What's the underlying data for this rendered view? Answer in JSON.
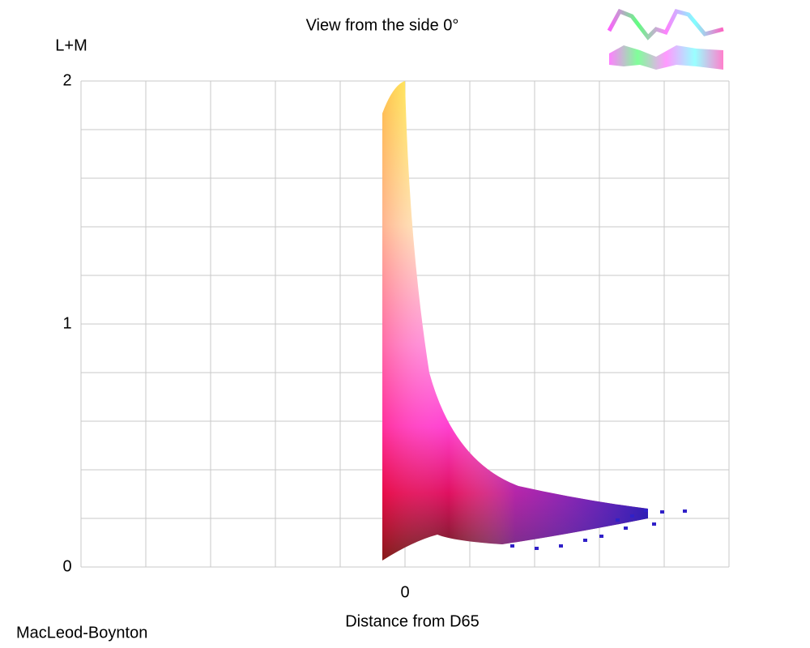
{
  "chart_data": {
    "type": "scatter",
    "title": "View from the side 0°",
    "x_label": "Distance from D65",
    "y_label": "L+M",
    "caption": "MacLeod-Boynton",
    "xlim": [
      -1,
      1
    ],
    "xticks": [
      0
    ],
    "ylim": [
      0,
      2
    ],
    "yticks": [
      0,
      1,
      2
    ],
    "grid": true
  }
}
